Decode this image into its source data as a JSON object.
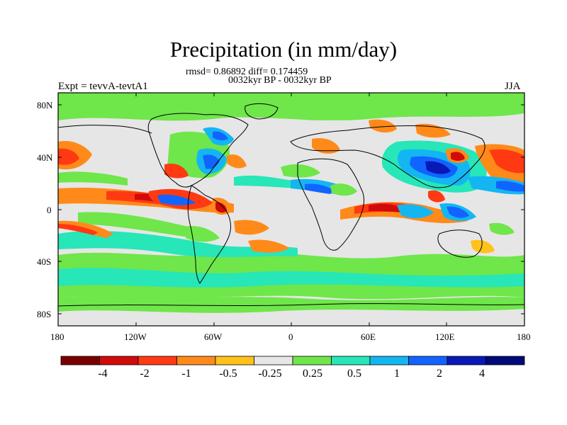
{
  "header": {
    "title": "Precipitation (in mm/day)",
    "stats": "rmsd= 0.86892 diff= 0.174459",
    "period": "0032kyr BP - 0032kyr BP",
    "experiment": "Expt = tevvA-tevtA1",
    "season": "JJA"
  },
  "axes": {
    "lat_ticks": [
      "80N",
      "40N",
      "0",
      "40S",
      "80S"
    ],
    "lon_ticks": [
      "180",
      "120W",
      "60W",
      "0",
      "60E",
      "120E",
      "180"
    ]
  },
  "colorbar": {
    "colors": [
      "#7a0000",
      "#d10a0a",
      "#ff3a12",
      "#ff8a1a",
      "#ffc21a",
      "#e6e6e6",
      "#6fe64a",
      "#27e6b8",
      "#14b6f2",
      "#1264ff",
      "#0a18b8",
      "#000a78"
    ],
    "labels": [
      "-4",
      "-2",
      "-1",
      "-0.5",
      "-0.25",
      "0.25",
      "0.5",
      "1",
      "2",
      "4"
    ]
  },
  "colors": {
    "frame": "#000000",
    "background": "#e6e6e6",
    "coast": "#000000"
  }
}
